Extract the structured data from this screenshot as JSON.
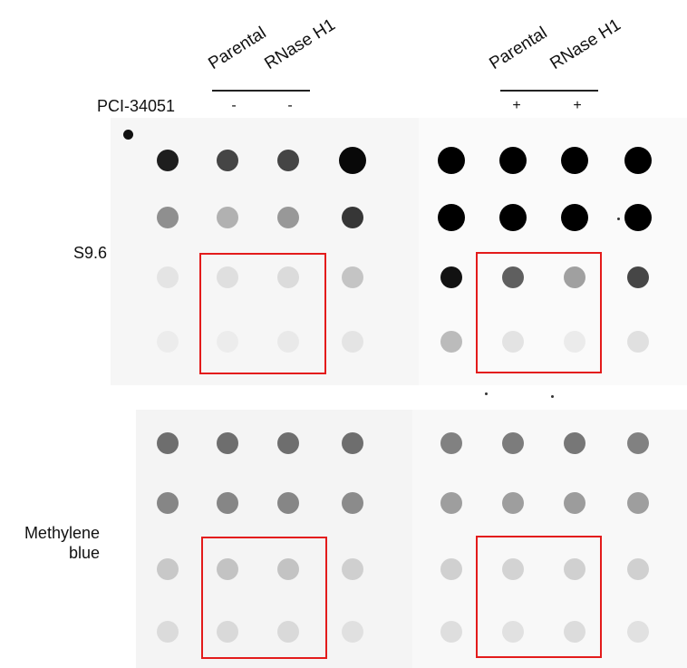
{
  "header": {
    "lane_labels_left": [
      "Parental",
      "RNase H1"
    ],
    "lane_labels_right": [
      "Parental",
      "RNase H1"
    ],
    "treatment_label": "PCI-34051",
    "signs_left": [
      "-",
      "-"
    ],
    "signs_right": [
      "+",
      "+"
    ]
  },
  "blots": {
    "top": {
      "label": "S9.6",
      "left_panel_intensity": [
        [
          0.88,
          0.72,
          0.72,
          0.97
        ],
        [
          0.42,
          0.28,
          0.38,
          0.78
        ],
        [
          0.07,
          0.09,
          0.11,
          0.2
        ],
        [
          0.04,
          0.04,
          0.05,
          0.07
        ]
      ],
      "right_panel_intensity": [
        [
          1.0,
          1.0,
          1.0,
          1.0
        ],
        [
          1.0,
          1.0,
          1.0,
          1.0
        ],
        [
          0.93,
          0.62,
          0.36,
          0.72
        ],
        [
          0.25,
          0.09,
          0.06,
          0.1
        ]
      ]
    },
    "bottom": {
      "label": "Methylene\nblue",
      "left_panel_intensity": [
        [
          0.55,
          0.55,
          0.55,
          0.55
        ],
        [
          0.45,
          0.45,
          0.45,
          0.43
        ],
        [
          0.18,
          0.2,
          0.2,
          0.15
        ],
        [
          0.1,
          0.11,
          0.11,
          0.08
        ]
      ],
      "right_panel_intensity": [
        [
          0.48,
          0.5,
          0.52,
          0.48
        ],
        [
          0.36,
          0.36,
          0.37,
          0.36
        ],
        [
          0.16,
          0.15,
          0.16,
          0.16
        ],
        [
          0.1,
          0.09,
          0.11,
          0.09
        ]
      ]
    }
  },
  "colors": {
    "highlight_box": "#e31b1b",
    "dot": "#000000",
    "membrane_background": "#f7f7f7"
  }
}
